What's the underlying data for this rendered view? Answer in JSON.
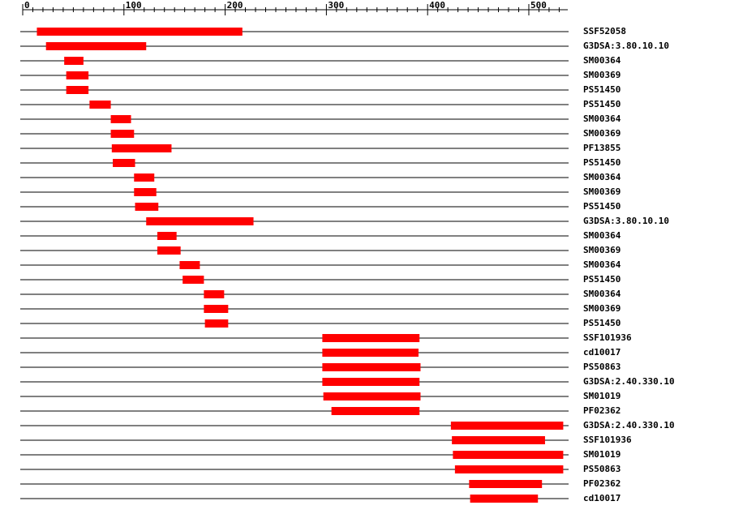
{
  "chart_data": {
    "type": "range",
    "categories": [
      "SSF52058",
      "G3DSA:3.80.10.10",
      "SM00364",
      "SM00369",
      "PS51450",
      "PS51450",
      "SM00364",
      "SM00369",
      "PF13855",
      "PS51450",
      "SM00364",
      "SM00369",
      "PS51450",
      "G3DSA:3.80.10.10",
      "SM00364",
      "SM00369",
      "SM00364",
      "PS51450",
      "SM00364",
      "SM00369",
      "PS51450",
      "SSF101936",
      "cd10017",
      "PS50863",
      "G3DSA:2.40.330.10",
      "SM01019",
      "PF02362",
      "G3DSA:2.40.330.10",
      "SSF101936",
      "SM01019",
      "PS50863",
      "PF02362",
      "cd10017"
    ],
    "starts": [
      14,
      23,
      41,
      43,
      43,
      66,
      87,
      87,
      88,
      89,
      110,
      110,
      111,
      122,
      133,
      133,
      155,
      158,
      179,
      179,
      180,
      296,
      296,
      296,
      296,
      297,
      305,
      423,
      424,
      425,
      427,
      441,
      442
    ],
    "ends": [
      217,
      122,
      60,
      65,
      65,
      87,
      107,
      110,
      147,
      111,
      130,
      132,
      134,
      228,
      152,
      156,
      175,
      179,
      199,
      203,
      203,
      392,
      391,
      393,
      392,
      393,
      392,
      534,
      516,
      534,
      534,
      513,
      509
    ],
    "color": "#ff0000",
    "xlim": [
      0,
      538
    ],
    "xticks": [
      0,
      100,
      200,
      300,
      400,
      500
    ],
    "xminorticks": [
      10,
      20,
      30,
      40,
      50,
      60,
      70,
      80,
      90,
      110,
      120,
      130,
      140,
      150,
      160,
      170,
      180,
      190,
      210,
      220,
      230,
      240,
      250,
      260,
      270,
      280,
      290,
      310,
      320,
      330,
      340,
      350,
      360,
      370,
      380,
      390,
      410,
      420,
      430,
      440,
      450,
      460,
      470,
      480,
      490,
      510,
      520,
      530
    ]
  }
}
